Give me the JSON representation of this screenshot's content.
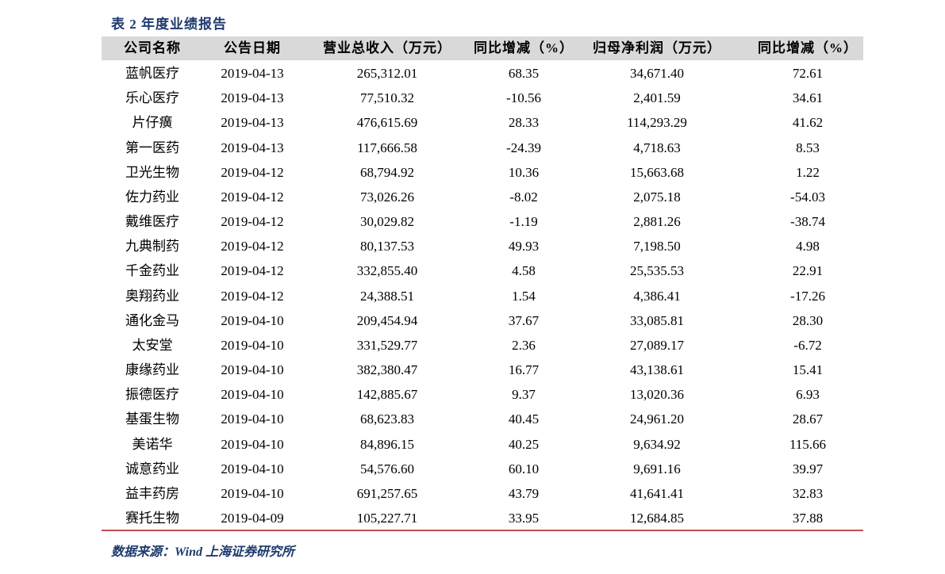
{
  "title": "表 2 年度业绩报告",
  "table": {
    "header": [
      "公司名称",
      "公告日期",
      "营业总收入（万元）",
      "同比增减（%）",
      "归母净利润（万元）",
      "同比增减（%）"
    ],
    "rows": [
      [
        "蓝帆医疗",
        "2019-04-13",
        "265,312.01",
        "68.35",
        "34,671.40",
        "72.61"
      ],
      [
        "乐心医疗",
        "2019-04-13",
        "77,510.32",
        "-10.56",
        "2,401.59",
        "34.61"
      ],
      [
        "片仔癀",
        "2019-04-13",
        "476,615.69",
        "28.33",
        "114,293.29",
        "41.62"
      ],
      [
        "第一医药",
        "2019-04-13",
        "117,666.58",
        "-24.39",
        "4,718.63",
        "8.53"
      ],
      [
        "卫光生物",
        "2019-04-12",
        "68,794.92",
        "10.36",
        "15,663.68",
        "1.22"
      ],
      [
        "佐力药业",
        "2019-04-12",
        "73,026.26",
        "-8.02",
        "2,075.18",
        "-54.03"
      ],
      [
        "戴维医疗",
        "2019-04-12",
        "30,029.82",
        "-1.19",
        "2,881.26",
        "-38.74"
      ],
      [
        "九典制药",
        "2019-04-12",
        "80,137.53",
        "49.93",
        "7,198.50",
        "4.98"
      ],
      [
        "千金药业",
        "2019-04-12",
        "332,855.40",
        "4.58",
        "25,535.53",
        "22.91"
      ],
      [
        "奥翔药业",
        "2019-04-12",
        "24,388.51",
        "1.54",
        "4,386.41",
        "-17.26"
      ],
      [
        "通化金马",
        "2019-04-10",
        "209,454.94",
        "37.67",
        "33,085.81",
        "28.30"
      ],
      [
        "太安堂",
        "2019-04-10",
        "331,529.77",
        "2.36",
        "27,089.17",
        "-6.72"
      ],
      [
        "康缘药业",
        "2019-04-10",
        "382,380.47",
        "16.77",
        "43,138.61",
        "15.41"
      ],
      [
        "振德医疗",
        "2019-04-10",
        "142,885.67",
        "9.37",
        "13,020.36",
        "6.93"
      ],
      [
        "基蛋生物",
        "2019-04-10",
        "68,623.83",
        "40.45",
        "24,961.20",
        "28.67"
      ],
      [
        "美诺华",
        "2019-04-10",
        "84,896.15",
        "40.25",
        "9,634.92",
        "115.66"
      ],
      [
        "诚意药业",
        "2019-04-10",
        "54,576.60",
        "60.10",
        "9,691.16",
        "39.97"
      ],
      [
        "益丰药房",
        "2019-04-10",
        "691,257.65",
        "43.79",
        "41,641.41",
        "32.83"
      ],
      [
        "赛托生物",
        "2019-04-09",
        "105,227.71",
        "33.95",
        "12,684.85",
        "37.88"
      ]
    ]
  },
  "source": "数据来源：Wind 上海证券研究所"
}
